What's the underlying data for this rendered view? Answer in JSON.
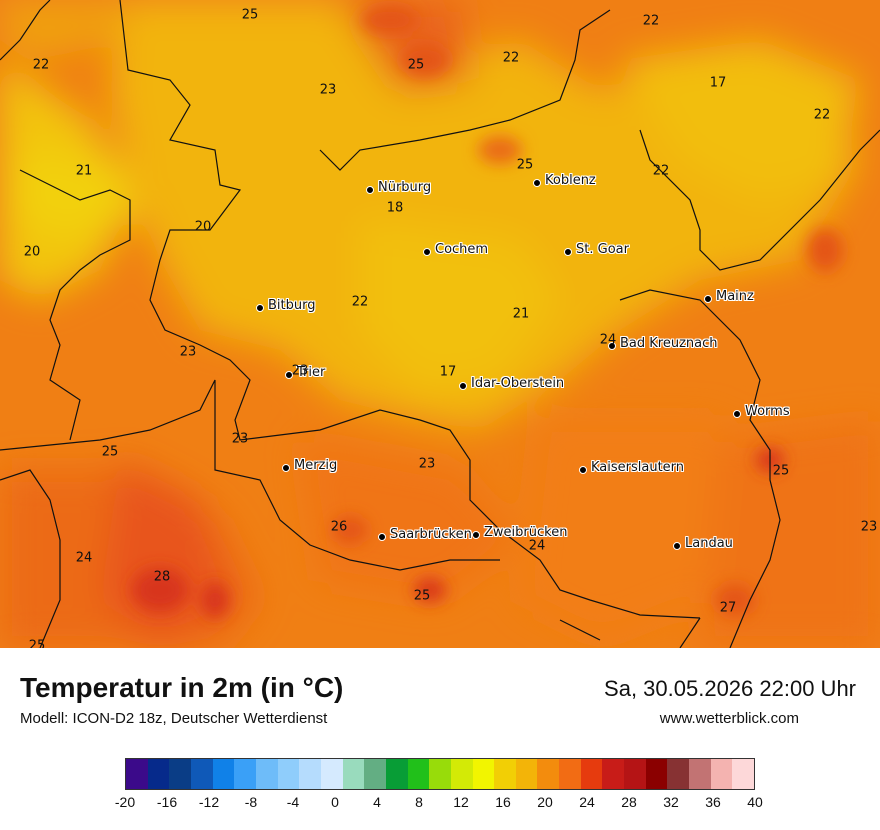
{
  "map": {
    "cities": [
      {
        "name": "Nürburg",
        "icon": "city-dot-icon"
      },
      {
        "name": "Koblenz",
        "icon": "city-dot-icon"
      },
      {
        "name": "Cochem",
        "icon": "city-dot-icon"
      },
      {
        "name": "St. Goar",
        "icon": "city-dot-icon"
      },
      {
        "name": "Bitburg",
        "icon": "city-dot-icon"
      },
      {
        "name": "Mainz",
        "icon": "city-dot-icon"
      },
      {
        "name": "Bad Kreuznach",
        "icon": "city-dot-icon"
      },
      {
        "name": "Trier",
        "icon": "city-dot-icon"
      },
      {
        "name": "Idar-Oberstein",
        "icon": "city-dot-icon"
      },
      {
        "name": "Worms",
        "icon": "city-dot-icon"
      },
      {
        "name": "Merzig",
        "icon": "city-dot-icon"
      },
      {
        "name": "Kaiserslautern",
        "icon": "city-dot-icon"
      },
      {
        "name": "Saarbrücken",
        "icon": "city-dot-icon"
      },
      {
        "name": "Zweibrücken",
        "icon": "city-dot-icon"
      },
      {
        "name": "Landau",
        "icon": "city-dot-icon"
      }
    ],
    "values": [
      "25",
      "22",
      "22",
      "25",
      "22",
      "17",
      "23",
      "22",
      "21",
      "25",
      "22",
      "18",
      "20",
      "20",
      "22",
      "21",
      "24",
      "23",
      "17",
      "23",
      "25",
      "23",
      "23",
      "25",
      "26",
      "24",
      "28",
      "24",
      "25",
      "27",
      "25",
      "23"
    ]
  },
  "header": {
    "title": "Temperatur in 2m (in °C)",
    "model": "Modell: ICON-D2 18z, Deutscher Wetterdienst",
    "datetime": "Sa, 30.05.2026 22:00 Uhr",
    "website": "www.wetterblick.com"
  },
  "legend": {
    "colors": [
      "#3b0a8a",
      "#062a8b",
      "#0a3d86",
      "#0f59b8",
      "#1081e8",
      "#3aa0f7",
      "#6ebcf9",
      "#8fcdfb",
      "#b5dcfd",
      "#d5eafe",
      "#99dbbd",
      "#63ae83",
      "#089d36",
      "#21c01a",
      "#98dc0a",
      "#d3ea06",
      "#f2f500",
      "#f2cf05",
      "#f3b408",
      "#f38c0d",
      "#f26c14",
      "#e63b0e",
      "#c81c18",
      "#b51415",
      "#8b0000",
      "#873233",
      "#c27373",
      "#f4b3b0",
      "#fdd8d9"
    ],
    "ticks": [
      "-20",
      "-16",
      "-12",
      "-8",
      "-4",
      "0",
      "4",
      "8",
      "12",
      "16",
      "20",
      "24",
      "28",
      "32",
      "36",
      "40"
    ],
    "min": -20,
    "max": 40
  }
}
